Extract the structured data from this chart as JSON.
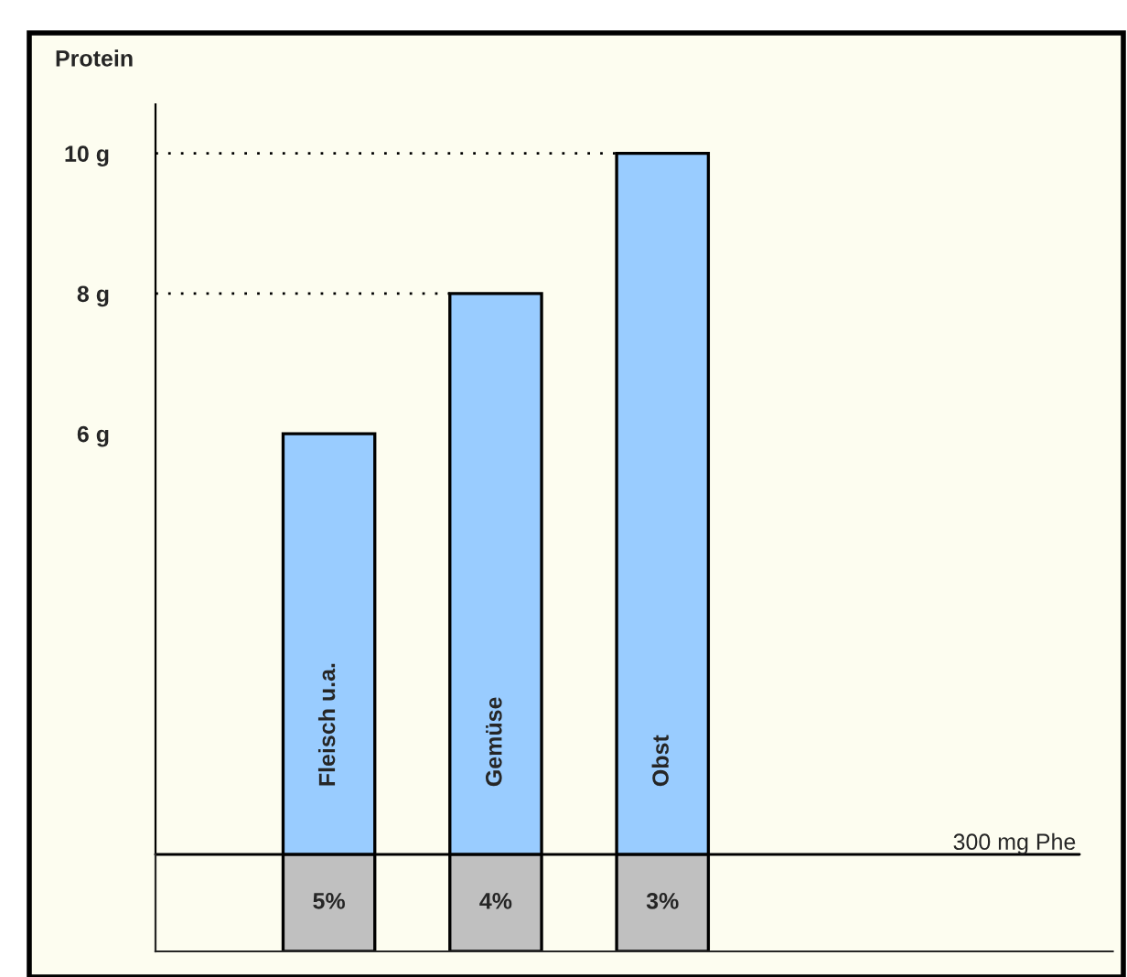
{
  "chart_data": {
    "type": "bar",
    "ylabel": "Protein",
    "categories": [
      "Fleisch u.a.",
      "Gemüse",
      "Obst"
    ],
    "values": [
      6,
      8,
      10
    ],
    "color": "#99ccff",
    "ylim": [
      0,
      10.7
    ],
    "yticks": [
      {
        "value": 6,
        "label": "6 g"
      },
      {
        "value": 8,
        "label": "8 g"
      },
      {
        "value": 10,
        "label": "10 g"
      }
    ],
    "ref_lines": [
      {
        "axis": "y",
        "value": 10,
        "label": null,
        "line_style": "dotted",
        "color": "#000000"
      },
      {
        "axis": "y",
        "value": 8,
        "label": null,
        "line_style": "dotted",
        "color": "#000000"
      },
      {
        "axis": "y",
        "value": 0,
        "label": "300 mg Phe",
        "line_style": "solid",
        "color": "#000000"
      }
    ],
    "annotations": [
      "5%",
      "4%",
      "3%"
    ],
    "grid": false,
    "legend": false
  }
}
